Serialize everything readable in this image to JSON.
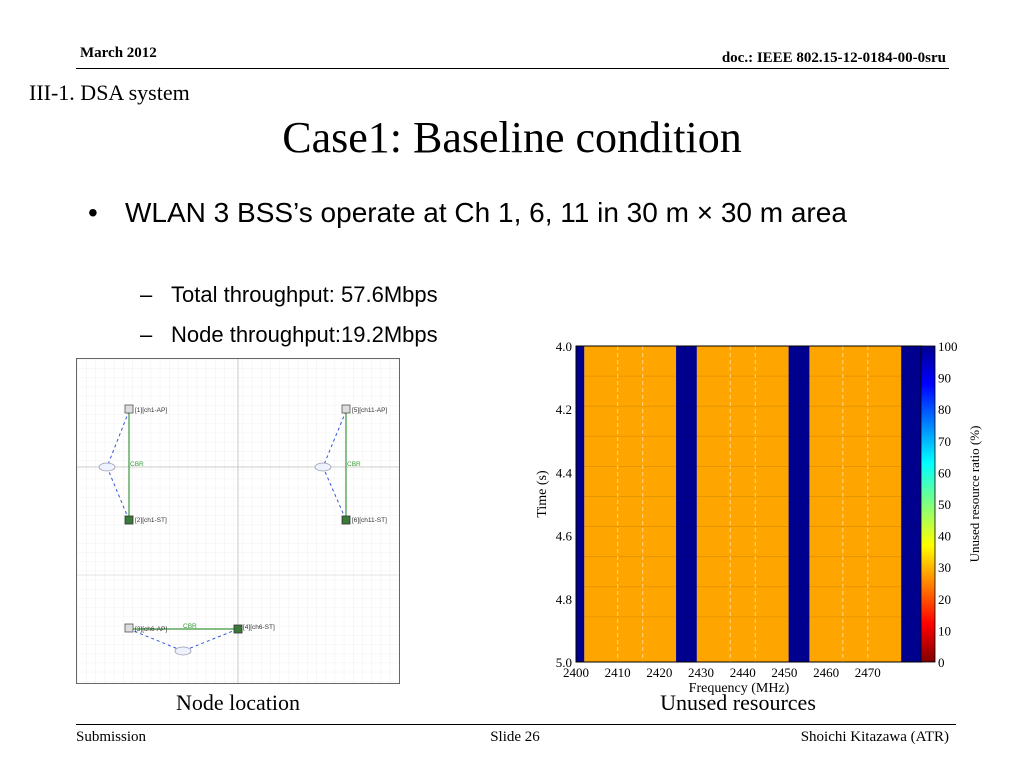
{
  "header": {
    "date": "March 2012",
    "doc": "doc.: IEEE 802.15-12-0184-00-0sru"
  },
  "section": "III-1. DSA system",
  "title": "Case1: Baseline condition",
  "bullets": {
    "main": "WLAN 3 BSS’s operate at Ch 1, 6, 11 in 30 m × 30 m area",
    "sub1": "Total throughput: 57.6Mbps",
    "sub2": "Node throughput:19.2Mbps"
  },
  "node_diagram": {
    "nodes": {
      "ch1_ap": "[1][ch1-AP]",
      "ch1_st": "[2][ch1-ST]",
      "ch11_ap": "[5][ch11-AP]",
      "ch11_st": "[6][ch11-ST]",
      "ch6_ap": "[3][ch6-AP]",
      "ch6_st": "[4][ch6-ST]"
    },
    "link_label": "CBR"
  },
  "captions": {
    "node": "Node location",
    "unused": "Unused resources"
  },
  "chart_data": {
    "type": "heatmap",
    "xlabel": "Frequency (MHz)",
    "ylabel": "Time (s)",
    "colorbar_label": "Unused resource ratio (%)",
    "xlim": [
      2400,
      2483
    ],
    "ylim": [
      4.0,
      5.0
    ],
    "x_ticks": [
      2400,
      2410,
      2420,
      2430,
      2440,
      2450,
      2460,
      2470
    ],
    "y_ticks": [
      "4.0",
      "4.2",
      "4.4",
      "4.6",
      "4.8",
      "5.0"
    ],
    "colorbar_ticks": [
      0,
      10,
      20,
      30,
      40,
      50,
      60,
      70,
      80,
      90,
      100
    ],
    "bands": [
      {
        "from": 2400,
        "to": 2402,
        "value": 100
      },
      {
        "from": 2402,
        "to": 2424,
        "value": 30
      },
      {
        "from": 2424,
        "to": 2429,
        "value": 100
      },
      {
        "from": 2429,
        "to": 2451,
        "value": 30
      },
      {
        "from": 2451,
        "to": 2456,
        "value": 100
      },
      {
        "from": 2456,
        "to": 2478,
        "value": 30
      },
      {
        "from": 2478,
        "to": 2483,
        "value": 100
      }
    ]
  },
  "footer": {
    "left": "Submission",
    "mid": "Slide 26",
    "right": "Shoichi Kitazawa (ATR)"
  }
}
